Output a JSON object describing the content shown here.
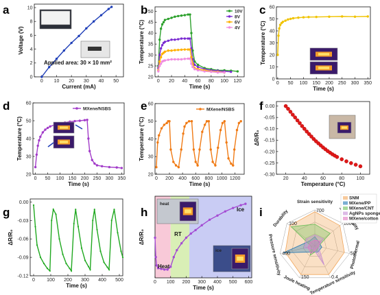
{
  "chart_data": [
    {
      "panel": "a",
      "type": "line",
      "xlabel": "Current (mA)",
      "ylabel": "Voltage (V)",
      "xlim": [
        -5,
        55
      ],
      "ylim": [
        0,
        10.5
      ],
      "xticks": [
        "0",
        "10",
        "20",
        "30",
        "40",
        "50"
      ],
      "yticks": [
        "0",
        "2",
        "4",
        "6",
        "8",
        "10"
      ],
      "annotation": "Applied area: 30 × 10 mm²",
      "color": "#1f3fb8",
      "x": [
        0,
        5,
        10,
        15,
        20,
        25,
        30,
        35,
        40,
        45,
        47
      ],
      "y": [
        0,
        1.4,
        2.6,
        3.8,
        4.9,
        5.9,
        7.0,
        8.0,
        8.9,
        9.8,
        10.1
      ]
    },
    {
      "panel": "b",
      "type": "line",
      "xlabel": "Time (s)",
      "ylabel": "Temperature (°C)",
      "xlim": [
        -5,
        130
      ],
      "ylim": [
        20,
        52
      ],
      "xticks": [
        "0",
        "20",
        "40",
        "60",
        "80",
        "100",
        "120"
      ],
      "yticks": [
        "20",
        "25",
        "30",
        "35",
        "40",
        "45",
        "50"
      ],
      "legend_position": "top-right",
      "series": [
        {
          "name": "10V",
          "color": "#2ca02c",
          "x": [
            0,
            2,
            4,
            6,
            8,
            10,
            15,
            20,
            25,
            30,
            35,
            40,
            45,
            48,
            50,
            52,
            55,
            60,
            70,
            80,
            90,
            100,
            110,
            120
          ],
          "y": [
            25,
            37,
            42,
            44,
            45,
            46,
            46.5,
            47,
            47.5,
            47.8,
            48,
            48.2,
            48.5,
            48.5,
            40,
            32,
            27,
            25.5,
            24,
            23.5,
            23,
            23,
            22.8,
            22.5
          ]
        },
        {
          "name": "8V",
          "color": "#7a2bd1",
          "x": [
            0,
            2,
            4,
            6,
            8,
            10,
            15,
            20,
            25,
            30,
            35,
            40,
            45,
            48,
            50,
            52,
            55,
            60,
            70,
            80,
            90,
            100,
            110
          ],
          "y": [
            24,
            30,
            33,
            34.5,
            35.5,
            36,
            36.5,
            37,
            37,
            37.2,
            37.5,
            37.5,
            37.5,
            37.5,
            33,
            28,
            25.5,
            24.5,
            23.5,
            23,
            22.8,
            22.5,
            22.3
          ]
        },
        {
          "name": "6V",
          "color": "#ffb000",
          "x": [
            0,
            2,
            4,
            6,
            8,
            10,
            15,
            20,
            25,
            30,
            35,
            40,
            45,
            48,
            50,
            52,
            55,
            60,
            70,
            80,
            90,
            100
          ],
          "y": [
            23,
            27,
            29,
            30.5,
            31,
            31.5,
            32,
            32,
            32.2,
            32.3,
            32.4,
            32.5,
            32.5,
            32.5,
            29,
            26,
            24,
            23.5,
            23,
            22.5,
            22.3,
            22
          ]
        },
        {
          "name": "4V",
          "color": "#f08ce0",
          "x": [
            0,
            2,
            4,
            6,
            8,
            10,
            15,
            20,
            25,
            30,
            35,
            40,
            45,
            48,
            50,
            52,
            55,
            60,
            70,
            80,
            90,
            100
          ],
          "y": [
            22.5,
            25,
            26,
            27,
            27.3,
            27.5,
            27.8,
            28,
            28,
            28,
            28,
            28.2,
            28.3,
            28.3,
            26,
            24.5,
            23.5,
            23,
            22.5,
            22.3,
            22,
            22
          ]
        }
      ]
    },
    {
      "panel": "c",
      "type": "line",
      "xlabel": "Time (s)",
      "ylabel": "Temperature (°C)",
      "xlim": [
        -5,
        360
      ],
      "ylim": [
        0,
        60
      ],
      "xticks": [
        "0",
        "50",
        "100",
        "150",
        "200",
        "250",
        "300",
        "350"
      ],
      "yticks": [
        "0",
        "10",
        "20",
        "30",
        "40",
        "50",
        "60"
      ],
      "color": "#f0c300",
      "x": [
        0,
        3,
        6,
        10,
        15,
        20,
        30,
        40,
        50,
        60,
        80,
        100,
        120,
        150,
        200,
        250,
        300,
        350
      ],
      "y": [
        20,
        36,
        42,
        45,
        46.5,
        47.5,
        48.5,
        49.5,
        50,
        50.5,
        51,
        51.3,
        51.5,
        51.6,
        51.8,
        52,
        51.8,
        52
      ]
    },
    {
      "panel": "d",
      "type": "line",
      "xlabel": "Time (s)",
      "ylabel": "Temperature (°C)",
      "xlim": [
        -10,
        360
      ],
      "ylim": [
        20,
        60
      ],
      "xticks": [
        "0",
        "50",
        "100",
        "150",
        "200",
        "250",
        "300",
        "350"
      ],
      "yticks": [
        "20",
        "30",
        "40",
        "50",
        "60"
      ],
      "legend": "MXene/NSBS",
      "color": "#a23cc9",
      "x": [
        0,
        5,
        10,
        15,
        20,
        30,
        40,
        50,
        60,
        80,
        100,
        120,
        140,
        160,
        180,
        200,
        210,
        215,
        220,
        230,
        240,
        250,
        270,
        300,
        330,
        350
      ],
      "y": [
        24,
        31,
        36,
        39,
        41,
        43.5,
        45,
        46,
        46.8,
        47.8,
        48.5,
        49,
        49.5,
        49.8,
        50,
        50.3,
        50.5,
        40,
        33,
        28,
        26,
        25,
        24.5,
        24,
        23.8,
        23.5
      ]
    },
    {
      "panel": "e",
      "type": "line",
      "xlabel": "Time (s)",
      "ylabel": "Temperature (°C)",
      "xlim": [
        -20,
        1340
      ],
      "ylim": [
        20,
        60
      ],
      "xticks": [
        "0",
        "200",
        "400",
        "600",
        "800",
        "1000",
        "1200"
      ],
      "yticks": [
        "20",
        "30",
        "40",
        "50",
        "60"
      ],
      "legend": "MXene/NSBS",
      "color": "#f07a14",
      "x": [
        0,
        20,
        40,
        80,
        120,
        160,
        180,
        200,
        220,
        260,
        300,
        340,
        380,
        410,
        430,
        460,
        500,
        540,
        570,
        600,
        630,
        660,
        700,
        740,
        770,
        800,
        830,
        860,
        900,
        940,
        980,
        1010,
        1040,
        1070,
        1100,
        1140,
        1170,
        1190,
        1230,
        1260,
        1290
      ],
      "y": [
        24,
        38,
        42,
        46,
        48,
        49,
        50,
        50,
        34,
        27,
        25,
        24,
        34,
        43,
        47,
        49,
        50,
        50,
        34,
        27,
        25,
        34,
        44,
        48,
        50,
        50,
        34,
        27,
        25,
        35,
        45,
        49,
        50,
        38,
        29,
        26,
        25,
        34,
        45,
        49,
        50
      ]
    },
    {
      "panel": "f",
      "type": "scatter",
      "xlabel": "Temperature (°C)",
      "ylabel": "ΔR/R₀",
      "xlim": [
        10,
        110
      ],
      "ylim": [
        -0.3,
        0.02
      ],
      "xticks": [
        "20",
        "40",
        "60",
        "80",
        "100"
      ],
      "yticks": [
        "0.00",
        "-0.05",
        "-0.10",
        "-0.15",
        "-0.20",
        "-0.25",
        "-0.30"
      ],
      "color": "#e01818",
      "x": [
        20,
        22.5,
        25,
        27.5,
        30,
        32.5,
        35,
        37.5,
        40,
        42.5,
        45,
        47.5,
        50,
        52.5,
        55,
        57.5,
        60,
        62.5,
        65,
        67.5,
        70,
        72.5,
        75,
        80,
        85,
        90,
        95,
        100
      ],
      "y": [
        0,
        -0.012,
        -0.025,
        -0.038,
        -0.05,
        -0.063,
        -0.075,
        -0.088,
        -0.1,
        -0.112,
        -0.123,
        -0.134,
        -0.145,
        -0.155,
        -0.164,
        -0.173,
        -0.182,
        -0.19,
        -0.198,
        -0.205,
        -0.212,
        -0.218,
        -0.224,
        -0.234,
        -0.243,
        -0.251,
        -0.258,
        -0.265
      ]
    },
    {
      "panel": "g",
      "type": "line",
      "xlabel": "Time (s)",
      "ylabel": "ΔR/R₀",
      "xlim": [
        -20,
        520
      ],
      "ylim": [
        -0.12,
        0.005
      ],
      "xticks": [
        "0",
        "100",
        "200",
        "300",
        "400",
        "500"
      ],
      "yticks": [
        "0.00",
        "-0.03",
        "-0.06",
        "-0.09",
        "-0.12"
      ],
      "color": "#1fa81f",
      "x": [
        0,
        10,
        20,
        40,
        60,
        80,
        95,
        105,
        115,
        130,
        150,
        170,
        190,
        210,
        220,
        235,
        245,
        260,
        280,
        300,
        320,
        330,
        345,
        355,
        370,
        390,
        410,
        430,
        440,
        455,
        470,
        490,
        510,
        520
      ],
      "y": [
        -0.005,
        -0.04,
        -0.07,
        -0.09,
        -0.1,
        -0.108,
        -0.112,
        -0.03,
        -0.012,
        -0.02,
        -0.06,
        -0.085,
        -0.1,
        -0.108,
        -0.112,
        -0.035,
        -0.012,
        -0.04,
        -0.075,
        -0.095,
        -0.105,
        -0.11,
        -0.03,
        -0.012,
        -0.045,
        -0.08,
        -0.098,
        -0.106,
        -0.11,
        -0.03,
        -0.012,
        -0.05,
        -0.08,
        -0.09
      ]
    },
    {
      "panel": "h",
      "type": "line",
      "xlabel": "Time (s)",
      "ylabel": "ΔR/R₀",
      "xlim": [
        0,
        620
      ],
      "ylim": [
        -0.35,
        0.24
      ],
      "xticks": [
        "0",
        "100",
        "200",
        "300",
        "400",
        "500",
        "600"
      ],
      "yticks": [],
      "regions": [
        {
          "label": "Heat",
          "from": 0,
          "to": 100,
          "color": "#f8c9d8"
        },
        {
          "label": "RT",
          "from": 100,
          "to": 220,
          "color": "#d9efb6"
        },
        {
          "label": "Ice",
          "from": 220,
          "to": 620,
          "color": "#c9ccf4"
        }
      ],
      "insets": [
        "heat",
        "ice"
      ],
      "color": "#a44cd3",
      "x": [
        0,
        5,
        10,
        20,
        40,
        60,
        80,
        100,
        120,
        140,
        170,
        200,
        230,
        260,
        300,
        350,
        400,
        450,
        500,
        550,
        580
      ],
      "y": [
        -0.06,
        -0.2,
        -0.26,
        -0.28,
        -0.285,
        -0.29,
        -0.29,
        -0.27,
        -0.2,
        -0.15,
        -0.1,
        -0.06,
        -0.03,
        -0.005,
        0.03,
        0.07,
        0.1,
        0.13,
        0.155,
        0.175,
        0.185
      ]
    },
    {
      "panel": "i",
      "type": "radar",
      "axes": [
        "Strain sensitivity",
        "Stretchability",
        "Photothermal",
        "Temperature sensitivity",
        "Joule heating",
        "Pressure sensitivity",
        "Durability"
      ],
      "axis_values": [
        "700",
        "1000",
        "50",
        "0.4",
        "150",
        "400",
        "100"
      ],
      "series": [
        {
          "name": "SNM",
          "color": "#f2a65a",
          "values": [
            0.95,
            0.9,
            0.85,
            0.9,
            0.9,
            0.85,
            0.9
          ]
        },
        {
          "name": "MXene/PP",
          "color": "#1f77b4",
          "values": [
            0.25,
            0.15,
            0.2,
            0.2,
            0.2,
            0.9,
            0.2
          ]
        },
        {
          "name": "MXene/CNT",
          "color": "#6abf59",
          "values": [
            0.6,
            0.55,
            0.1,
            0.15,
            0.3,
            0.1,
            0.85
          ]
        },
        {
          "name": "AgNPs sponge",
          "color": "#c58bd6",
          "values": [
            0.3,
            0.3,
            0.1,
            0.6,
            0.1,
            0.3,
            0.3
          ]
        },
        {
          "name": "MXene/cotton",
          "color": "#e377c2",
          "values": [
            0.15,
            0.2,
            0.1,
            0.1,
            0.25,
            0.2,
            0.15
          ]
        }
      ]
    }
  ]
}
